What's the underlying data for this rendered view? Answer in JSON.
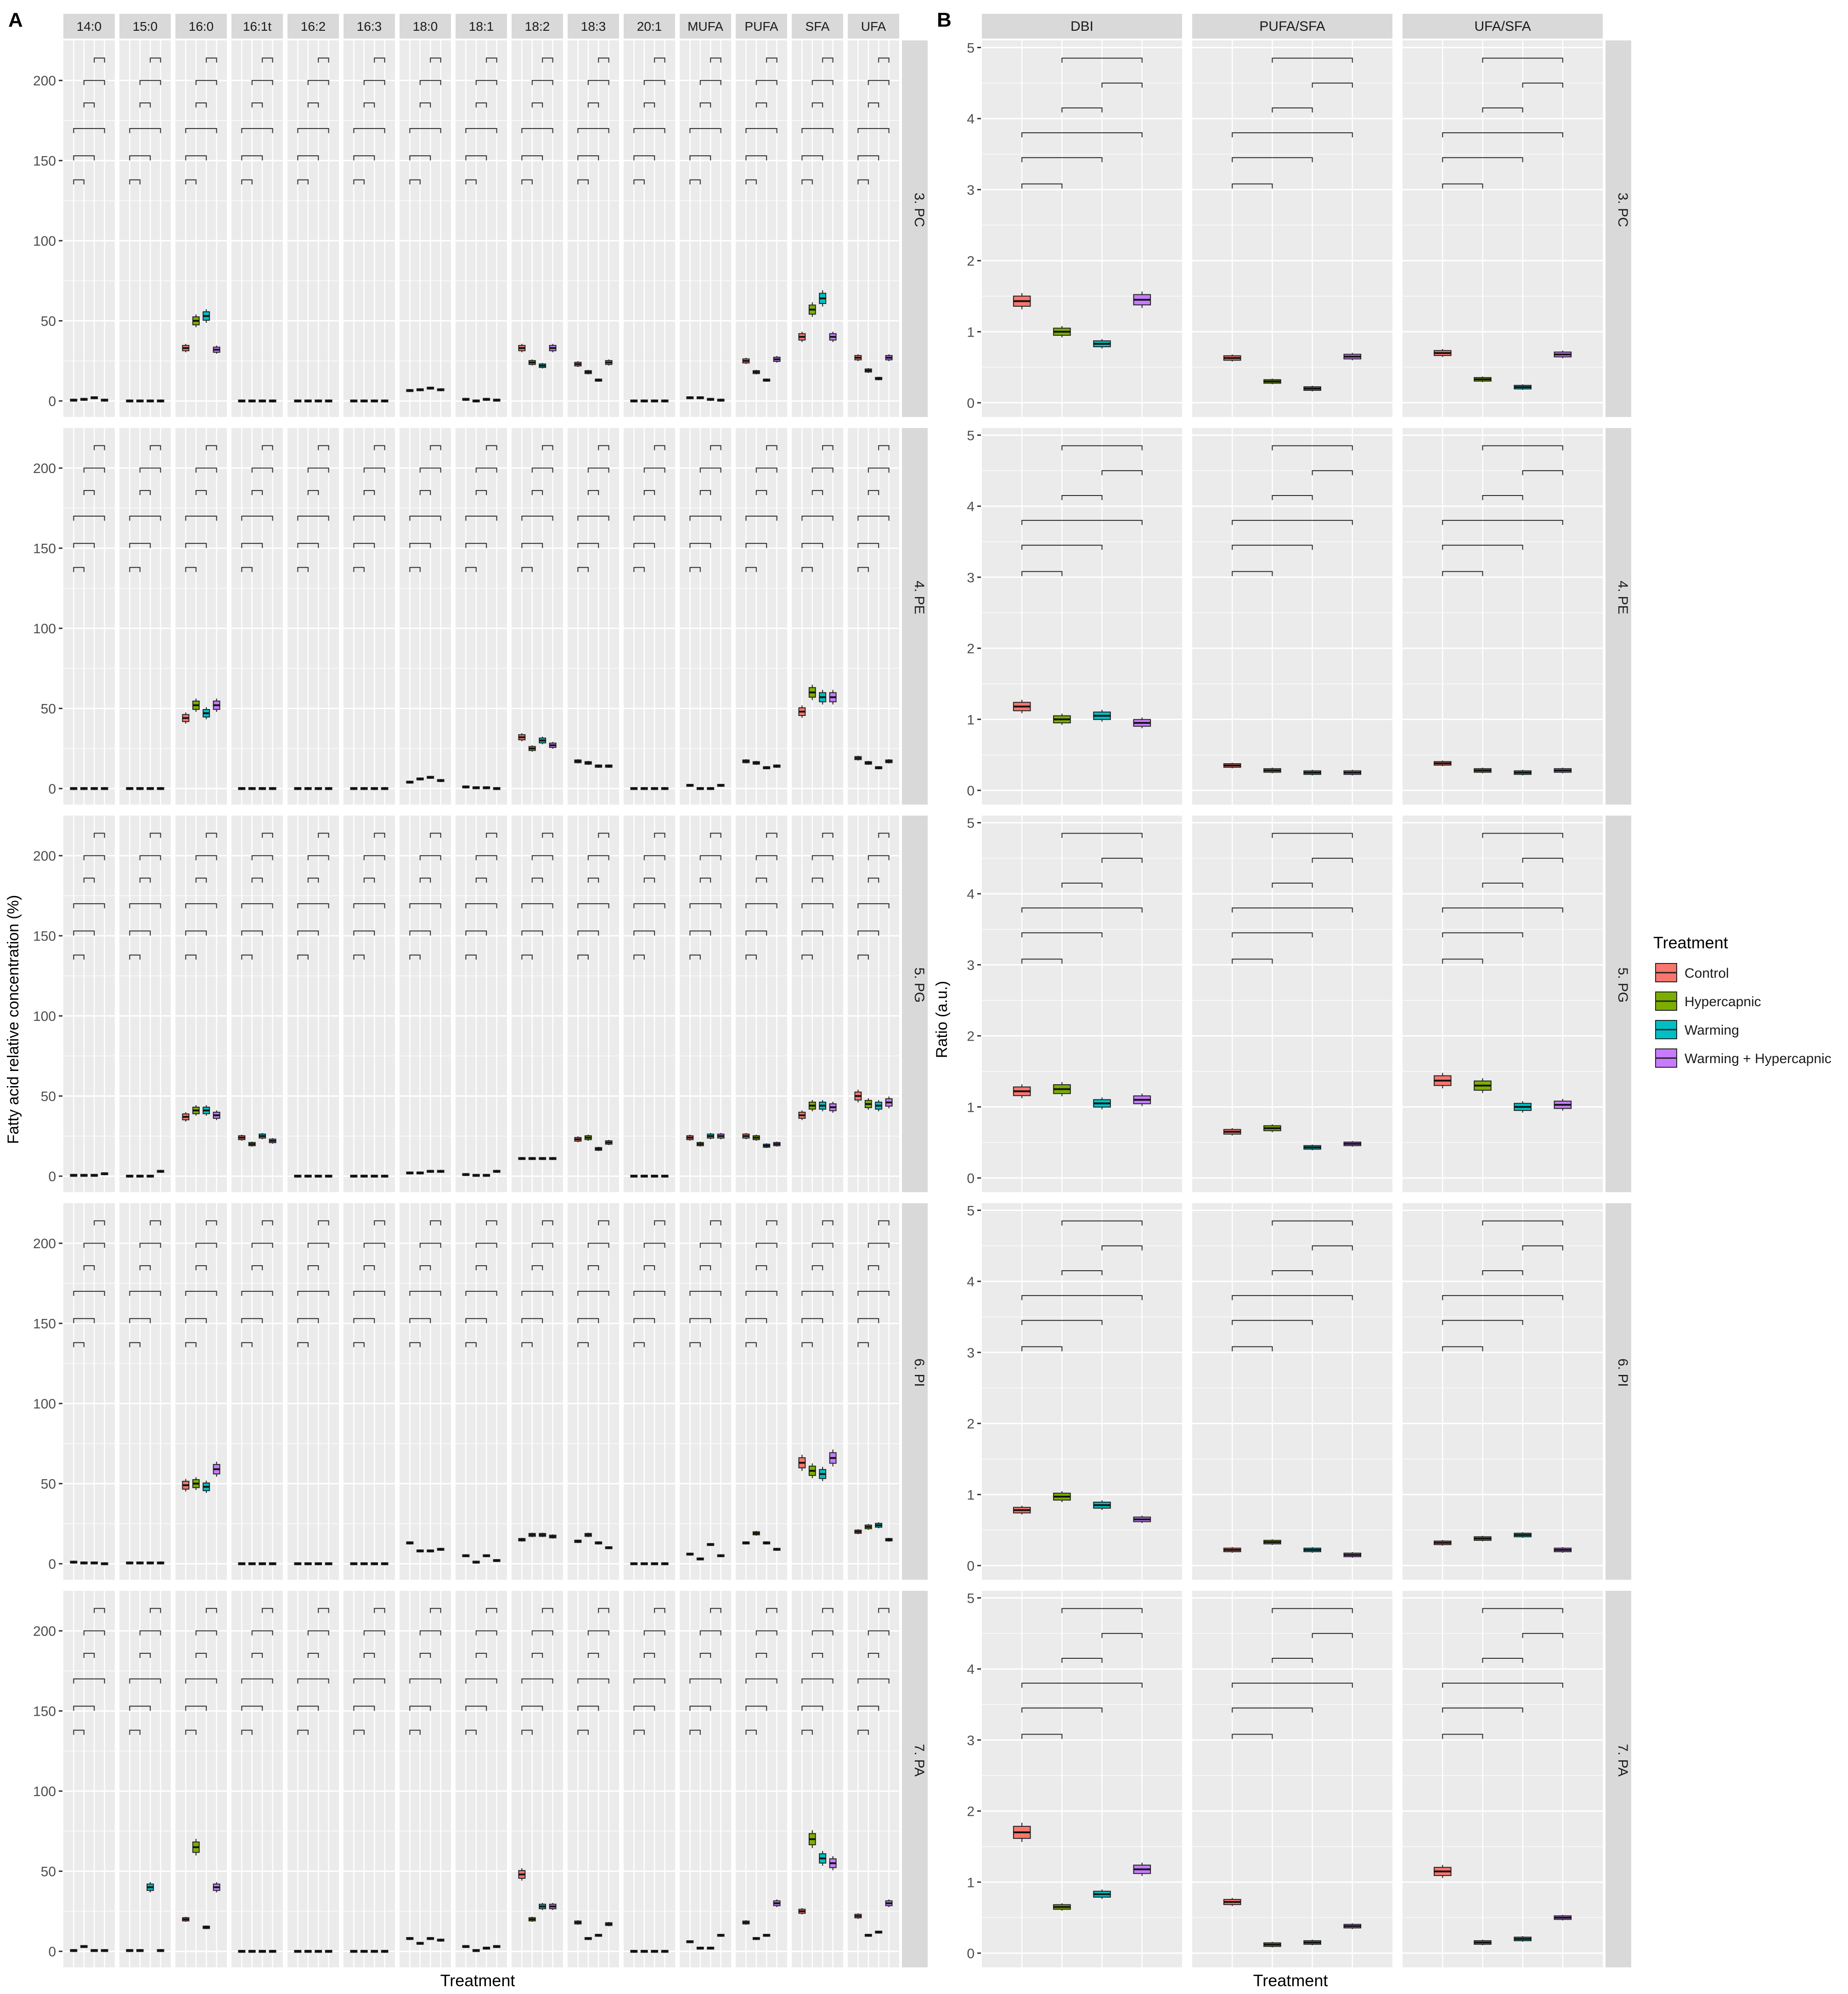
{
  "labels": {
    "panel_a": "A",
    "panel_b": "B",
    "ylabel_a": "Fatty acid relative concentration (%)",
    "ylabel_b": "Ratio (a.u.)",
    "xlabel": "Treatment",
    "legend_title": "Treatment"
  },
  "colors": {
    "Control": "#F8766D",
    "Hypercapnic": "#7CAE00",
    "Warming": "#00BFC4",
    "Warming + Hypercapnic": "#C77CFF",
    "panel_bg": "#EBEBEB",
    "grid": "#FFFFFF",
    "strip_bg": "#D9D9D9"
  },
  "chart_data": [
    {
      "type": "box",
      "panel": "A",
      "rows": [
        "3. PC",
        "4. PE",
        "5. PG",
        "6. PI",
        "7. PA"
      ],
      "columns": [
        "14:0",
        "15:0",
        "16:0",
        "16:1t",
        "16:2",
        "16:3",
        "18:0",
        "18:1",
        "18:2",
        "18:3",
        "20:1",
        "MUFA",
        "PUFA",
        "SFA",
        "UFA"
      ],
      "series": [
        "Control",
        "Hypercapnic",
        "Warming",
        "Warming + Hypercapnic"
      ],
      "ylim": [
        -10,
        225
      ],
      "yticks": [
        "0",
        "50",
        "100",
        "150",
        "200"
      ],
      "values": {
        "3. PC": {
          "14:0": [
            0.5,
            1,
            2,
            0.5
          ],
          "15:0": [
            0,
            0,
            0,
            0
          ],
          "16:0": [
            33,
            50,
            53,
            32
          ],
          "16:1t": [
            0,
            0,
            0,
            0
          ],
          "16:2": [
            0,
            0,
            0,
            0
          ],
          "16:3": [
            0,
            0,
            0,
            0
          ],
          "18:0": [
            6.5,
            7,
            8,
            7
          ],
          "18:1": [
            1,
            0,
            1,
            0.5
          ],
          "18:2": [
            33,
            24,
            22,
            33
          ],
          "18:3": [
            23,
            18,
            13,
            24
          ],
          "20:1": [
            0,
            0,
            0,
            0
          ],
          "MUFA": [
            2,
            2,
            1,
            0.5
          ],
          "PUFA": [
            25,
            18,
            13,
            26
          ],
          "SFA": [
            40,
            57,
            64,
            40
          ],
          "UFA": [
            27,
            19,
            14,
            27
          ]
        },
        "4. PE": {
          "14:0": [
            0,
            0,
            0,
            0
          ],
          "15:0": [
            0,
            0,
            0,
            0
          ],
          "16:0": [
            44,
            52,
            47,
            52
          ],
          "16:1t": [
            0,
            0,
            0,
            0
          ],
          "16:2": [
            0,
            0,
            0,
            0
          ],
          "16:3": [
            0,
            0,
            0,
            0
          ],
          "18:0": [
            4,
            6,
            7,
            5
          ],
          "18:1": [
            1,
            0.5,
            0.5,
            0
          ],
          "18:2": [
            32,
            25,
            30,
            27
          ],
          "18:3": [
            17,
            16,
            14,
            14
          ],
          "20:1": [
            0,
            0,
            0,
            0
          ],
          "MUFA": [
            2,
            0,
            0,
            2
          ],
          "PUFA": [
            17,
            16,
            13,
            14
          ],
          "SFA": [
            48,
            60,
            57,
            57
          ],
          "UFA": [
            19,
            16,
            13,
            17
          ]
        },
        "5. PG": {
          "14:0": [
            0.5,
            0.5,
            0.5,
            1.5
          ],
          "15:0": [
            0,
            0,
            0,
            3
          ],
          "16:0": [
            37,
            41,
            41,
            38
          ],
          "16:1t": [
            24,
            20,
            25,
            22
          ],
          "16:2": [
            0,
            0,
            0,
            0
          ],
          "16:3": [
            0,
            0,
            0,
            0
          ],
          "18:0": [
            2,
            2,
            3,
            3
          ],
          "18:1": [
            1,
            0.5,
            0.5,
            3
          ],
          "18:2": [
            11,
            11,
            11,
            11
          ],
          "18:3": [
            23,
            24,
            17,
            21
          ],
          "20:1": [
            0,
            0,
            0,
            0
          ],
          "MUFA": [
            24,
            20,
            25,
            25
          ],
          "PUFA": [
            25,
            24,
            19,
            20
          ],
          "SFA": [
            38,
            44,
            44,
            43
          ],
          "UFA": [
            50,
            45,
            44,
            46
          ]
        },
        "6. PI": {
          "14:0": [
            1,
            0.5,
            0.5,
            0
          ],
          "15:0": [
            0.5,
            0.5,
            0.5,
            0.5
          ],
          "16:0": [
            49,
            50,
            48,
            59
          ],
          "16:1t": [
            0,
            0,
            0,
            0
          ],
          "16:2": [
            0,
            0,
            0,
            0
          ],
          "16:3": [
            0,
            0,
            0,
            0
          ],
          "18:0": [
            13,
            8,
            8,
            9
          ],
          "18:1": [
            5,
            1,
            5,
            2
          ],
          "18:2": [
            15,
            18,
            18,
            17
          ],
          "18:3": [
            14,
            18,
            13,
            10
          ],
          "20:1": [
            0,
            0,
            0,
            0
          ],
          "MUFA": [
            6,
            3,
            12,
            5
          ],
          "PUFA": [
            13,
            19,
            13,
            9
          ],
          "SFA": [
            63,
            58,
            56,
            66
          ],
          "UFA": [
            20,
            23,
            24,
            15
          ]
        },
        "7. PA": {
          "14:0": [
            0.5,
            3,
            0.5,
            0.5
          ],
          "15:0": [
            0.5,
            0.5,
            40,
            0.5
          ],
          "16:0": [
            20,
            65,
            15,
            40
          ],
          "16:1t": [
            0,
            0,
            0,
            0
          ],
          "16:2": [
            0,
            0,
            0,
            0
          ],
          "16:3": [
            0,
            0,
            0,
            0
          ],
          "18:0": [
            8,
            5,
            8,
            7
          ],
          "18:1": [
            3,
            0.5,
            2,
            3
          ],
          "18:2": [
            48,
            20,
            28,
            28
          ],
          "18:3": [
            18,
            8,
            10,
            17
          ],
          "20:1": [
            0,
            0,
            0,
            0
          ],
          "MUFA": [
            6,
            2,
            2,
            10
          ],
          "PUFA": [
            18,
            8,
            10,
            30
          ],
          "SFA": [
            25,
            70,
            58,
            55
          ],
          "UFA": [
            22,
            10,
            12,
            30
          ]
        }
      }
    },
    {
      "type": "box",
      "panel": "B",
      "rows": [
        "3. PC",
        "4. PE",
        "5. PG",
        "6. PI",
        "7. PA"
      ],
      "columns": [
        "DBI",
        "PUFA/SFA",
        "UFA/SFA"
      ],
      "series": [
        "Control",
        "Hypercapnic",
        "Warming",
        "Warming + Hypercapnic"
      ],
      "ylim": [
        -0.2,
        5.1
      ],
      "yticks": [
        "0",
        "1",
        "2",
        "3",
        "4",
        "5"
      ],
      "values": {
        "3. PC": {
          "DBI": [
            1.43,
            1.0,
            0.83,
            1.45
          ],
          "PUFA/SFA": [
            0.63,
            0.3,
            0.2,
            0.65
          ],
          "UFA/SFA": [
            0.7,
            0.33,
            0.22,
            0.68
          ]
        },
        "4. PE": {
          "DBI": [
            1.18,
            1.0,
            1.05,
            0.95
          ],
          "PUFA/SFA": [
            0.35,
            0.28,
            0.25,
            0.25
          ],
          "UFA/SFA": [
            0.38,
            0.28,
            0.25,
            0.28
          ]
        },
        "5. PG": {
          "DBI": [
            1.22,
            1.25,
            1.05,
            1.1
          ],
          "PUFA/SFA": [
            0.65,
            0.7,
            0.43,
            0.48
          ],
          "UFA/SFA": [
            1.37,
            1.3,
            1.0,
            1.03
          ]
        },
        "6. PI": {
          "DBI": [
            0.78,
            0.97,
            0.85,
            0.65
          ],
          "PUFA/SFA": [
            0.22,
            0.33,
            0.22,
            0.15
          ],
          "UFA/SFA": [
            0.32,
            0.38,
            0.43,
            0.22
          ]
        },
        "7. PA": {
          "DBI": [
            1.7,
            0.65,
            0.83,
            1.18
          ],
          "PUFA/SFA": [
            0.72,
            0.12,
            0.15,
            0.38
          ],
          "UFA/SFA": [
            1.15,
            0.15,
            0.2,
            0.5
          ]
        }
      }
    }
  ]
}
